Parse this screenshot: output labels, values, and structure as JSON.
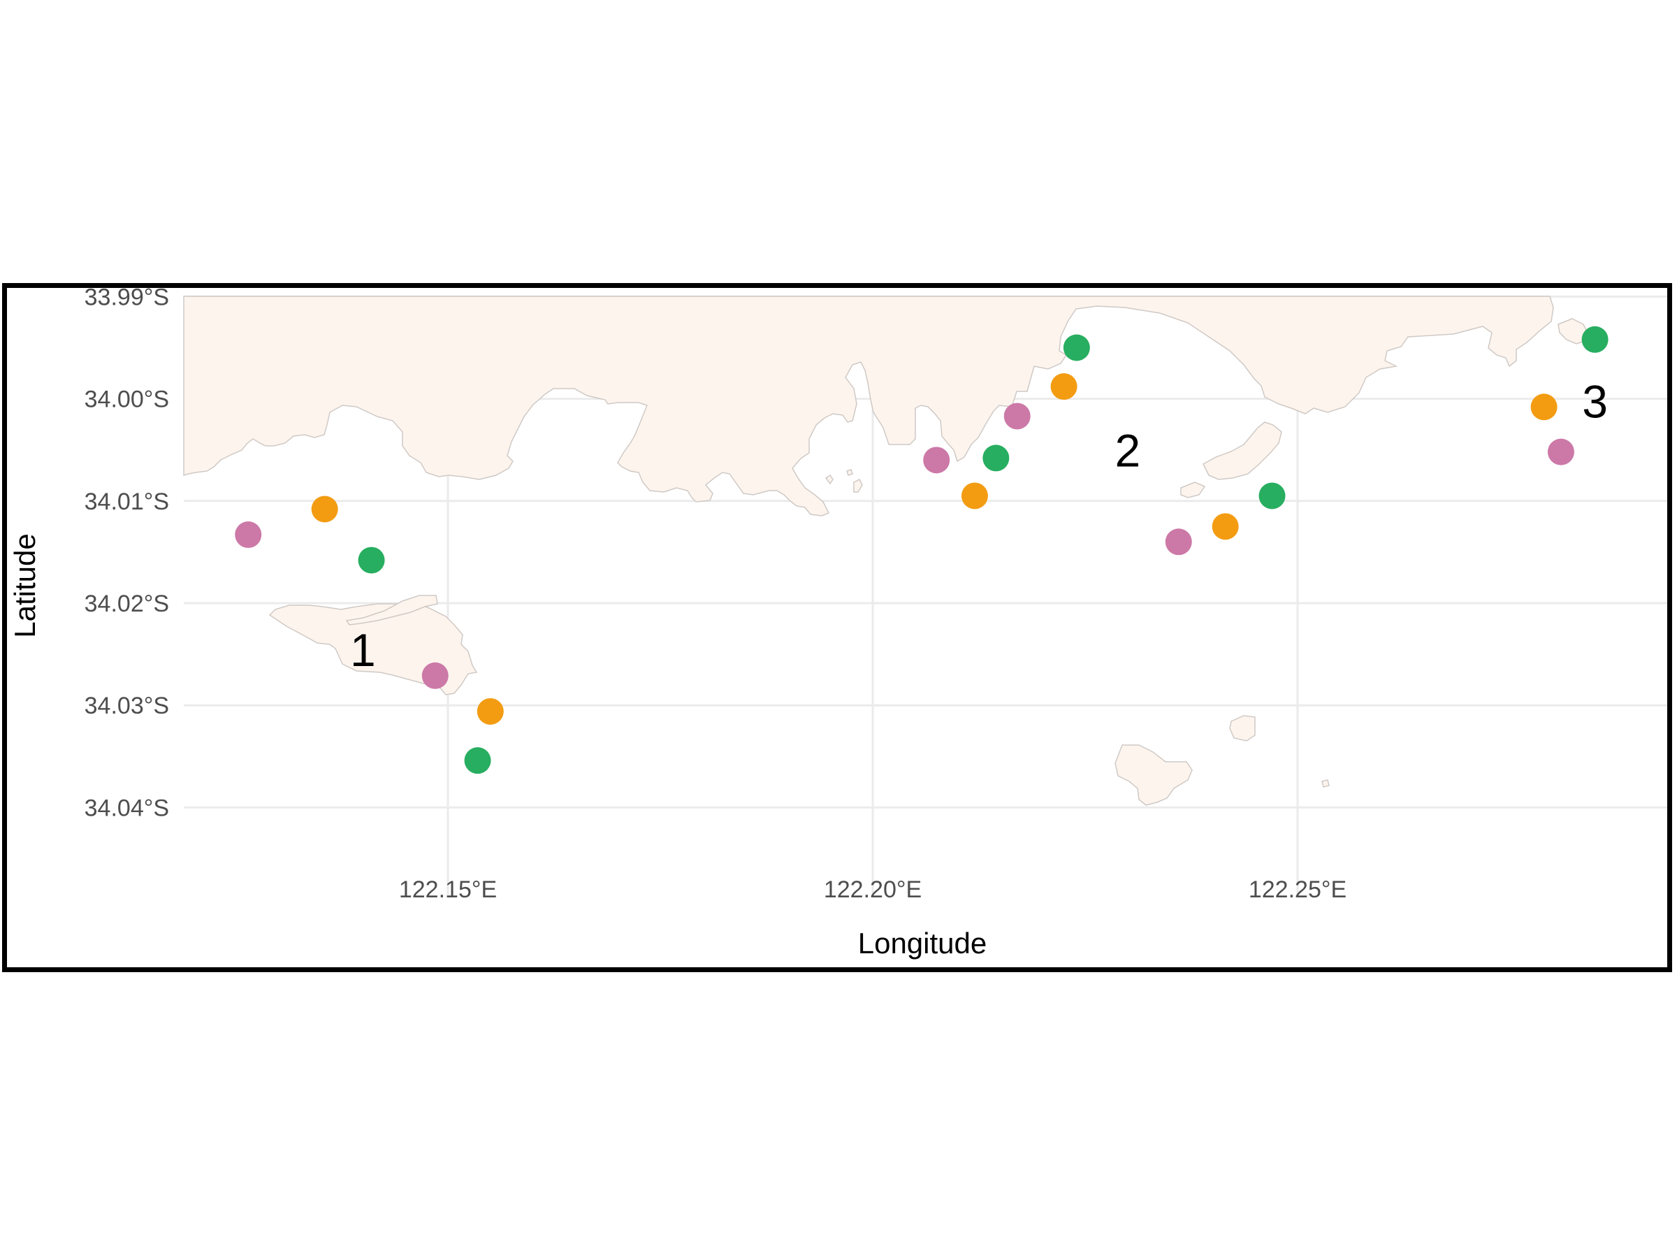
{
  "map": {
    "xlabel": "Longitude",
    "ylabel": "Latitude",
    "land_color": "#fdf4ee",
    "grid_color": "#ebebeb",
    "x_ticks": [
      {
        "value": 122.15,
        "label": "122.15°E"
      },
      {
        "value": 122.2,
        "label": "122.20°E"
      },
      {
        "value": 122.25,
        "label": "122.25°E"
      }
    ],
    "y_ticks": [
      {
        "value": -33.99,
        "label": "33.99°S"
      },
      {
        "value": -34.0,
        "label": "34.00°S"
      },
      {
        "value": -34.01,
        "label": "34.01°S"
      },
      {
        "value": -34.02,
        "label": "34.02°S"
      },
      {
        "value": -34.03,
        "label": "34.03°S"
      },
      {
        "value": -34.04,
        "label": "34.04°S"
      }
    ],
    "site_labels": [
      {
        "text": "1",
        "lon": 122.14,
        "lat": -34.0245
      },
      {
        "text": "2",
        "lon": 122.23,
        "lat": -34.005
      },
      {
        "text": "3",
        "lon": 122.285,
        "lat": -34.0002
      }
    ],
    "series_colors": {
      "orange": "#f39c12",
      "green": "#27ae60",
      "pink": "#cc79a7"
    },
    "points": [
      {
        "lon": 122.1265,
        "lat": -34.0133,
        "color": "pink"
      },
      {
        "lon": 122.1355,
        "lat": -34.0108,
        "color": "orange"
      },
      {
        "lon": 122.141,
        "lat": -34.0158,
        "color": "green"
      },
      {
        "lon": 122.1485,
        "lat": -34.0271,
        "color": "pink"
      },
      {
        "lon": 122.155,
        "lat": -34.0306,
        "color": "orange"
      },
      {
        "lon": 122.1535,
        "lat": -34.0354,
        "color": "green"
      },
      {
        "lon": 122.2075,
        "lat": -34.006,
        "color": "pink"
      },
      {
        "lon": 122.2145,
        "lat": -34.0058,
        "color": "green"
      },
      {
        "lon": 122.212,
        "lat": -34.0095,
        "color": "orange"
      },
      {
        "lon": 122.217,
        "lat": -34.0017,
        "color": "pink"
      },
      {
        "lon": 122.2225,
        "lat": -33.9988,
        "color": "orange"
      },
      {
        "lon": 122.224,
        "lat": -33.995,
        "color": "green"
      },
      {
        "lon": 122.236,
        "lat": -34.014,
        "color": "pink"
      },
      {
        "lon": 122.2415,
        "lat": -34.0125,
        "color": "orange"
      },
      {
        "lon": 122.247,
        "lat": -34.0095,
        "color": "green"
      },
      {
        "lon": 122.279,
        "lat": -34.0008,
        "color": "orange"
      },
      {
        "lon": 122.281,
        "lat": -34.0052,
        "color": "pink"
      },
      {
        "lon": 122.285,
        "lat": -33.9942,
        "color": "green"
      }
    ]
  }
}
